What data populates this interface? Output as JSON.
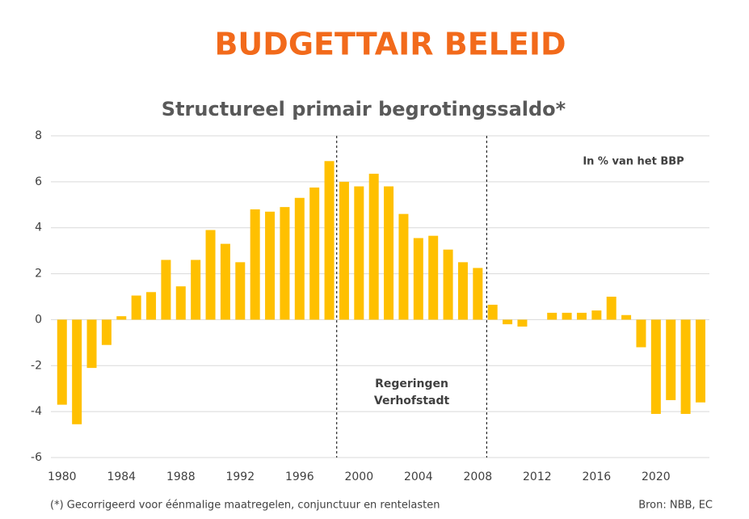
{
  "header": "BUDGETTAIR BELEID",
  "chart_data": {
    "type": "bar",
    "title": "Structureel primair begrotingssaldo*",
    "unit_note": "In % van het BBP",
    "x": [
      1980,
      1981,
      1982,
      1983,
      1984,
      1985,
      1986,
      1987,
      1988,
      1989,
      1990,
      1991,
      1992,
      1993,
      1994,
      1995,
      1996,
      1997,
      1998,
      1999,
      2000,
      2001,
      2002,
      2003,
      2004,
      2005,
      2006,
      2007,
      2008,
      2009,
      2010,
      2011,
      2012,
      2013,
      2014,
      2015,
      2016,
      2017,
      2018,
      2019,
      2020,
      2021,
      2022,
      2023
    ],
    "values": [
      -3.7,
      -4.55,
      -2.1,
      -1.1,
      0.15,
      1.05,
      1.2,
      2.6,
      1.45,
      2.6,
      3.9,
      3.3,
      2.5,
      4.8,
      4.7,
      4.9,
      5.3,
      5.75,
      6.9,
      6.0,
      5.8,
      6.35,
      5.8,
      4.6,
      3.55,
      3.65,
      3.05,
      2.5,
      2.25,
      0.65,
      -0.2,
      -0.3,
      0,
      0.3,
      0.3,
      0.3,
      0.4,
      1.0,
      0.2,
      -1.2,
      -4.1,
      -3.5,
      -4.1,
      -3.6
    ],
    "color": "#ffc000",
    "xlim": [
      1979.25,
      2023.6
    ],
    "xticks": [
      1980,
      1984,
      1988,
      1992,
      1996,
      2000,
      2004,
      2008,
      2012,
      2016,
      2020
    ],
    "ylim": [
      -6,
      8
    ],
    "yticks": [
      8,
      6,
      4,
      2,
      0,
      -2,
      -4,
      -6
    ],
    "grid": true,
    "period_lines": [
      1998.5,
      2008.6
    ],
    "period_label": [
      "Regeringen",
      "Verhofstadt"
    ]
  },
  "footnote": "(*) Gecorrigeerd voor éénmalige maatregelen, conjunctuur en rentelasten",
  "source": "Bron: NBB, EC"
}
